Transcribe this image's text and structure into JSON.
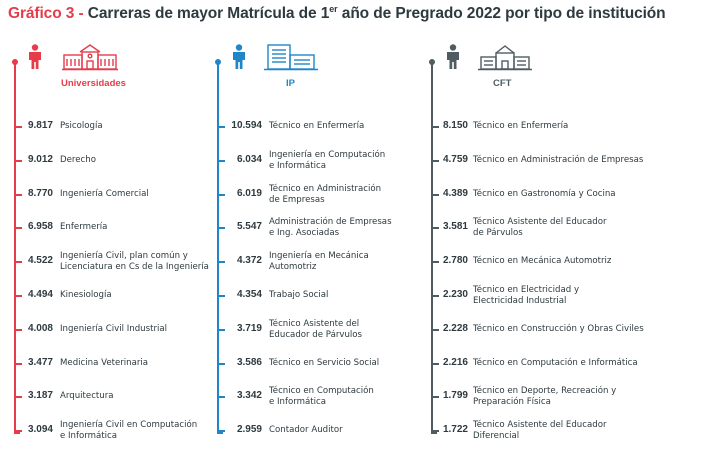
{
  "header": {
    "title_lead": "Gráfico 3 -",
    "title_text": "Carreras de mayor Matrícula de 1",
    "title_sup": "er",
    "title_tail": "año de Pregrado 2022 por tipo de institución"
  },
  "colors": {
    "universidades": "#e63c4a",
    "ip": "#1f86c7",
    "cft": "#4f5d63",
    "text": "#2d3a3f"
  },
  "chart_data": {
    "type": "table",
    "title": "Carreras de mayor Matrícula de 1er año de Pregrado 2022 por tipo de institución",
    "groups": [
      {
        "name": "Universidades",
        "icon": "university-building-icon",
        "entries": [
          {
            "value": "9.817",
            "label": "Psicología"
          },
          {
            "value": "9.012",
            "label": "Derecho"
          },
          {
            "value": "8.770",
            "label": "Ingeniería Comercial"
          },
          {
            "value": "6.958",
            "label": "Enfermería"
          },
          {
            "value": "4.522",
            "label": "Ingeniería Civil, plan común y\nLicenciatura en Cs de la Ingeniería"
          },
          {
            "value": "4.494",
            "label": "Kinesiología"
          },
          {
            "value": "4.008",
            "label": "Ingeniería Civil Industrial"
          },
          {
            "value": "3.477",
            "label": "Medicina Veterinaria"
          },
          {
            "value": "3.187",
            "label": "Arquitectura"
          },
          {
            "value": "3.094",
            "label": "Ingeniería Civil en Computación\ne Informática"
          }
        ]
      },
      {
        "name": "IP",
        "icon": "office-building-icon",
        "entries": [
          {
            "value": "10.594",
            "label": "Técnico en Enfermería"
          },
          {
            "value": "6.034",
            "label": "Ingeniería en Computación\ne Informática"
          },
          {
            "value": "6.019",
            "label": "Técnico en Administración\nde Empresas"
          },
          {
            "value": "5.547",
            "label": "Administración de Empresas\ne Ing. Asociadas"
          },
          {
            "value": "4.372",
            "label": "Ingeniería en Mecánica\nAutomotriz"
          },
          {
            "value": "4.354",
            "label": "Trabajo Social"
          },
          {
            "value": "3.719",
            "label": "Técnico Asistente del\nEducador de Párvulos"
          },
          {
            "value": "3.586",
            "label": "Técnico en Servicio Social"
          },
          {
            "value": "3.342",
            "label": "Técnico en Computación\ne Informática"
          },
          {
            "value": "2.959",
            "label": "Contador Auditor"
          }
        ]
      },
      {
        "name": "CFT",
        "icon": "school-building-icon",
        "entries": [
          {
            "value": "8.150",
            "label": "Técnico en Enfermería"
          },
          {
            "value": "4.759",
            "label": "Técnico en Administración de Empresas"
          },
          {
            "value": "4.389",
            "label": "Técnico en Gastronomía y Cocina"
          },
          {
            "value": "3.581",
            "label": "Técnico Asistente del Educador\nde Párvulos"
          },
          {
            "value": "2.780",
            "label": "Técnico en Mecánica Automotriz"
          },
          {
            "value": "2.230",
            "label": "Técnico en Electricidad y\nElectricidad Industrial"
          },
          {
            "value": "2.228",
            "label": "Técnico en Construcción y Obras Civiles"
          },
          {
            "value": "2.216",
            "label": "Técnico en Computación e Informática"
          },
          {
            "value": "1.799",
            "label": "Técnico en Deporte, Recreación y\nPreparación Física"
          },
          {
            "value": "1.722",
            "label": "Técnico Asistente del Educador\nDiferencial"
          }
        ]
      }
    ]
  }
}
